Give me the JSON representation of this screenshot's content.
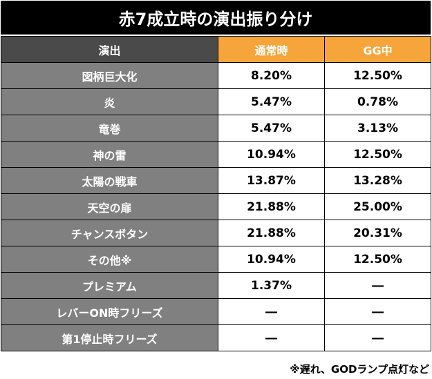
{
  "title": "赤7成立時の演出振り分け",
  "table": {
    "headers": [
      "演出",
      "通常時",
      "GG中"
    ],
    "rows": [
      {
        "label": "図柄巨大化",
        "normal": "8.20%",
        "gg": "12.50%"
      },
      {
        "label": "炎",
        "normal": "5.47%",
        "gg": "0.78%"
      },
      {
        "label": "竜巻",
        "normal": "5.47%",
        "gg": "3.13%"
      },
      {
        "label": "神の雷",
        "normal": "10.94%",
        "gg": "12.50%"
      },
      {
        "label": "太陽の戦車",
        "normal": "13.87%",
        "gg": "13.28%"
      },
      {
        "label": "天空の扉",
        "normal": "21.88%",
        "gg": "25.00%"
      },
      {
        "label": "チャンスボタン",
        "normal": "21.88%",
        "gg": "20.31%"
      },
      {
        "label": "その他※",
        "normal": "10.94%",
        "gg": "12.50%"
      },
      {
        "label": "プレミアム",
        "normal": "1.37%",
        "gg": "―"
      },
      {
        "label": "レバーON時フリーズ",
        "normal": "―",
        "gg": "―"
      },
      {
        "label": "第1停止時フリーズ",
        "normal": "―",
        "gg": "―"
      }
    ]
  },
  "footnote": "※遅れ、GODランプ点灯など",
  "colors": {
    "title_bg": "#000000",
    "header_label_bg": "#4a4a4a",
    "header_col_bg": "#f5a53a",
    "row_label_bg": "#808080",
    "value_bg": "#ffffff"
  }
}
